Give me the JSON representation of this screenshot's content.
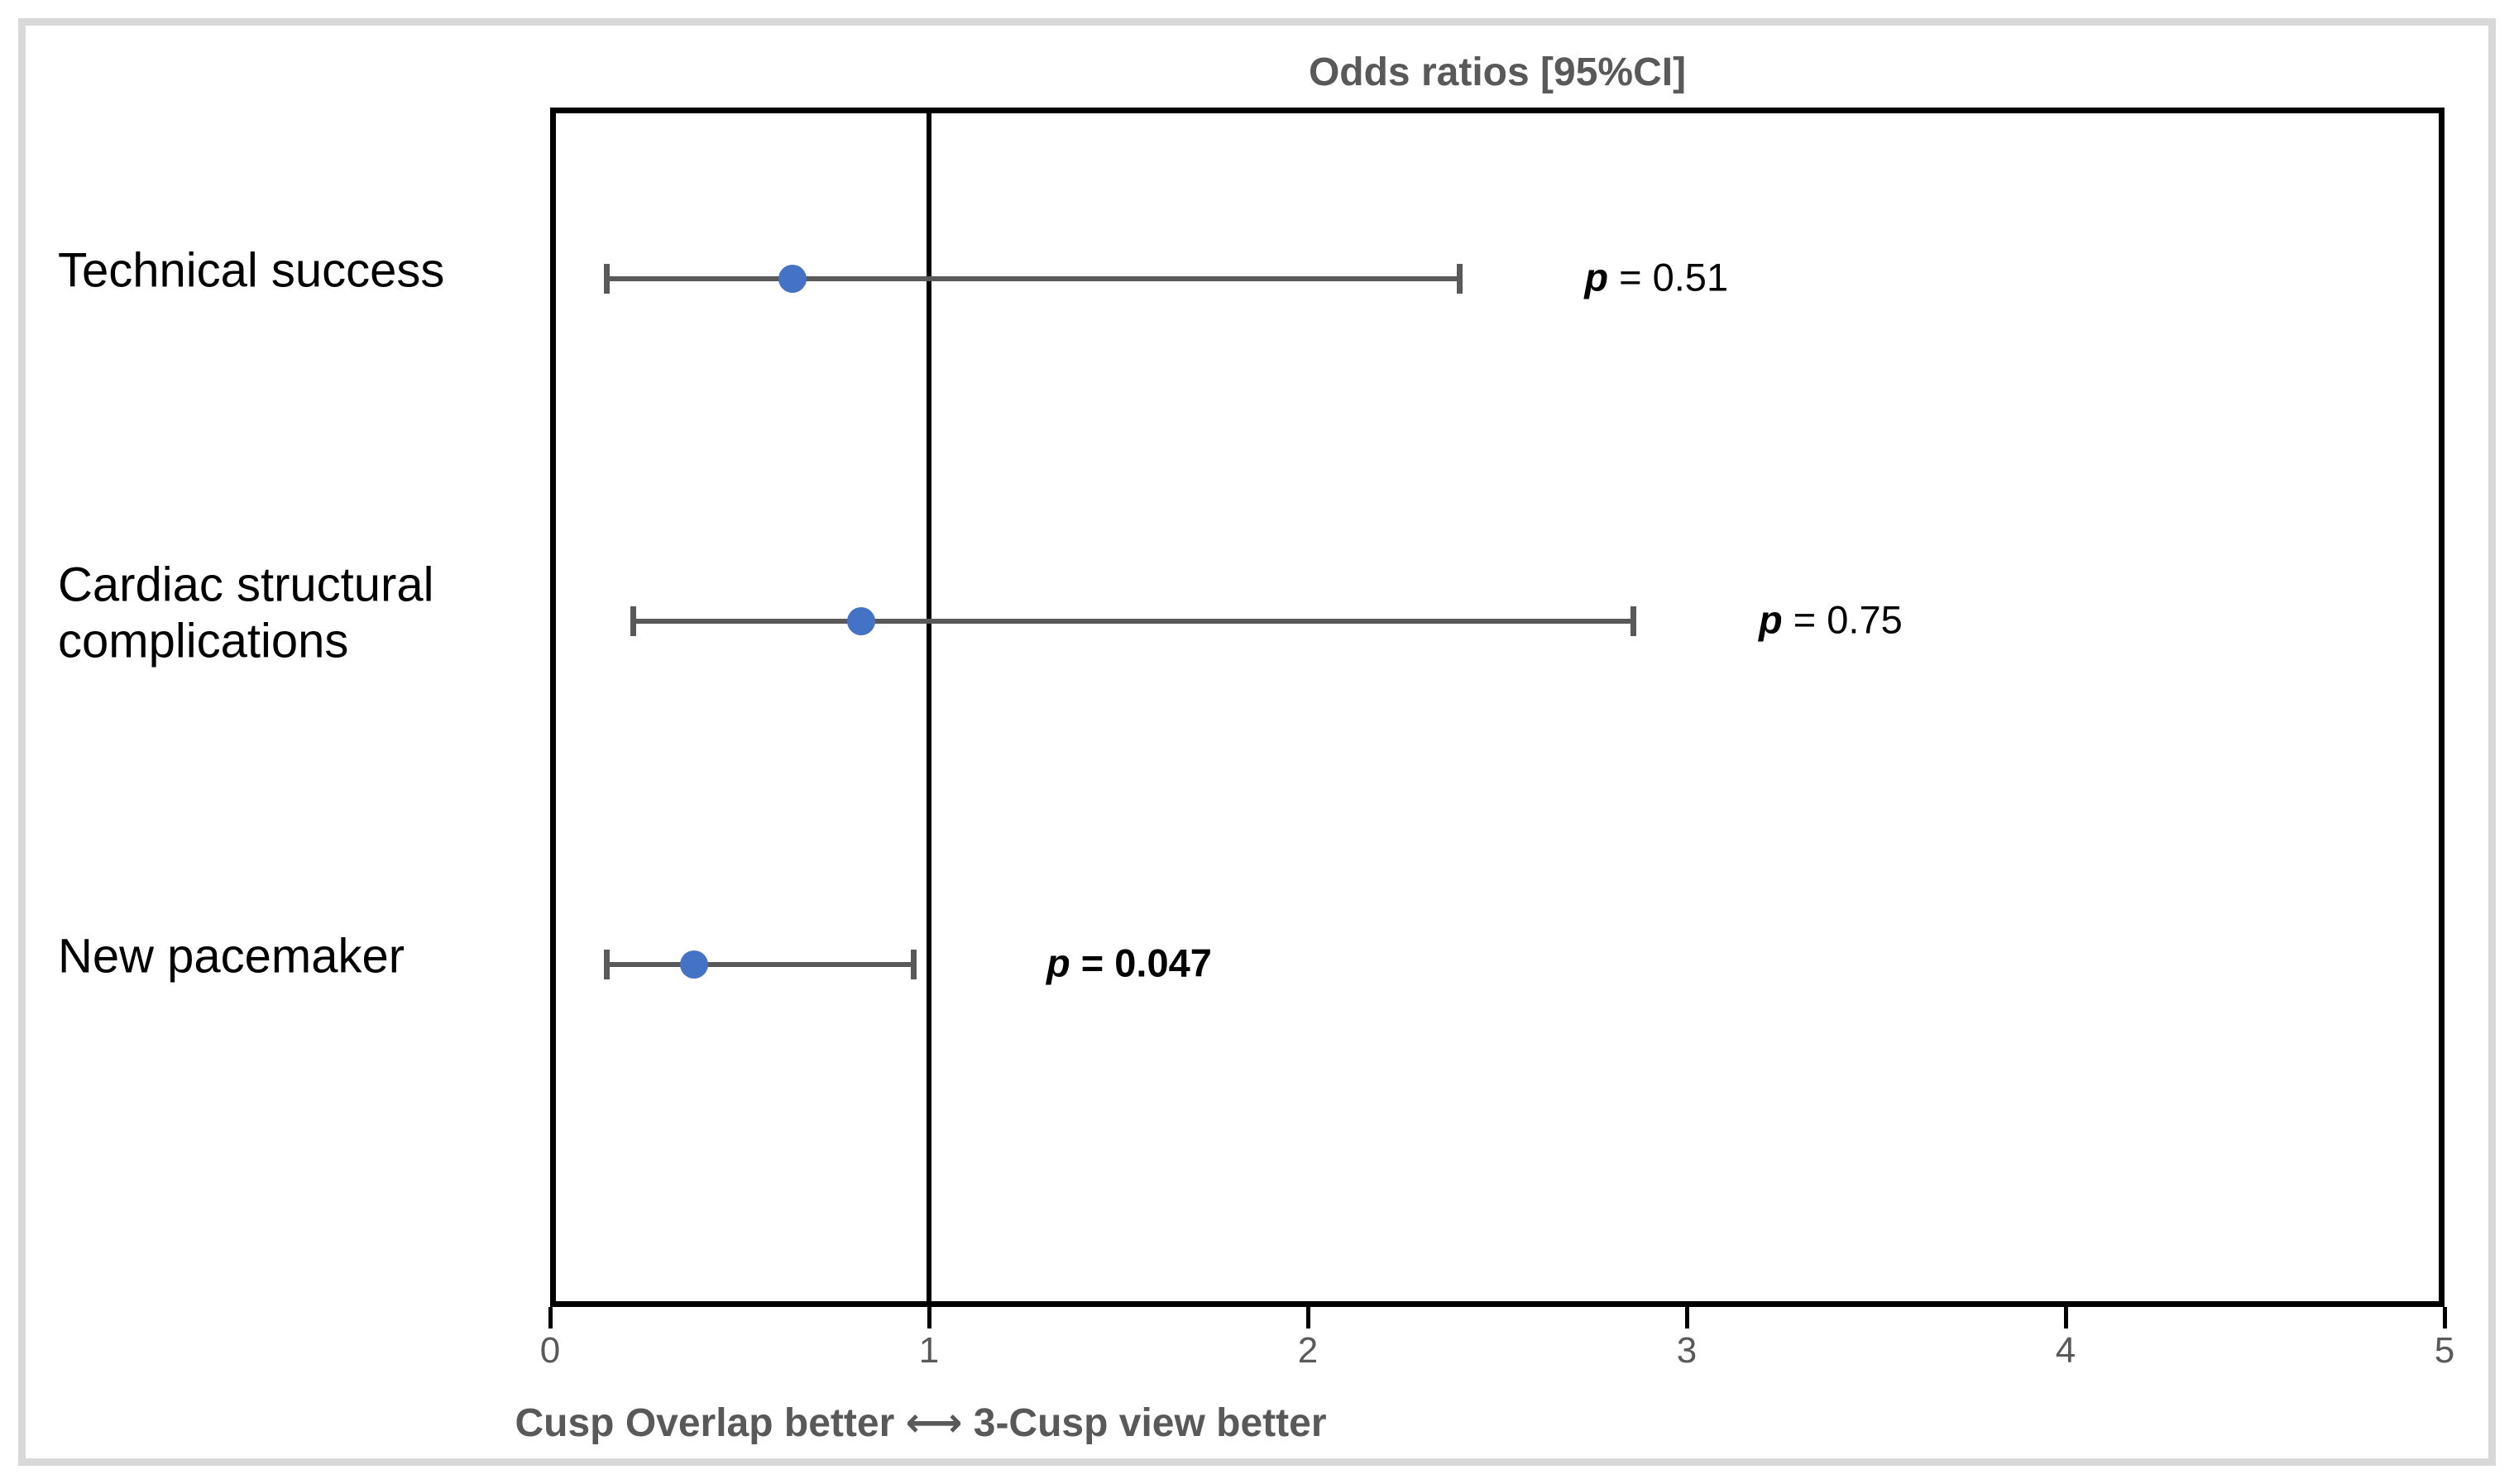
{
  "chart_data": {
    "type": "forest",
    "title": "Odds ratios [95%CI]",
    "xlabel": "Cusp Overlap better ⟷ 3-Cusp view better",
    "xlim": [
      0,
      5
    ],
    "ylim": [
      0,
      7
    ],
    "x_ticks": [
      "0",
      "1",
      "2",
      "3",
      "4",
      "5"
    ],
    "reference_line_x": 1,
    "grid": false,
    "rows": [
      {
        "label_lines": [
          "Technical success"
        ],
        "y": 6,
        "or": 0.64,
        "ci_low": 0.15,
        "ci_high": 2.4,
        "p_text": "p = 0.51",
        "p_bold": false,
        "p_x": 2.73
      },
      {
        "label_lines": [
          "Cardiac structural",
          "complications"
        ],
        "y": 4,
        "or": 0.82,
        "ci_low": 0.22,
        "ci_high": 2.86,
        "p_text": "p = 0.75",
        "p_bold": false,
        "p_x": 3.19
      },
      {
        "label_lines": [
          "New pacemaker"
        ],
        "y": 2,
        "or": 0.38,
        "ci_low": 0.15,
        "ci_high": 0.96,
        "p_text": "p = 0.047",
        "p_bold": true,
        "p_x": 1.31
      }
    ],
    "colors": {
      "marker": "#4472c4",
      "ci": "#595959",
      "gray_text": "#595959",
      "axis": "#000000",
      "figure_border": "#d8d8d8"
    }
  }
}
